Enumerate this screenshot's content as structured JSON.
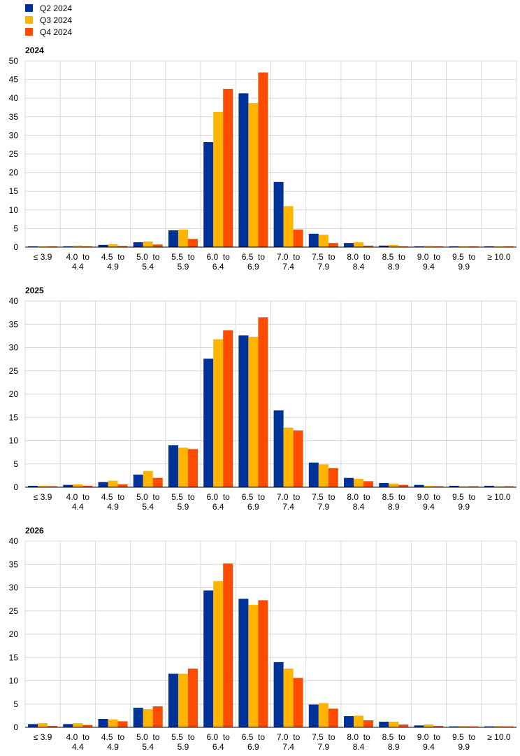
{
  "legend": [
    {
      "name": "Q2 2024",
      "color": "#003299"
    },
    {
      "name": "Q3 2024",
      "color": "#FFB400"
    },
    {
      "name": "Q4 2024",
      "color": "#FF4B00"
    }
  ],
  "chart_data": [
    {
      "type": "bar",
      "title": "2024",
      "ylim": [
        0,
        50
      ],
      "yticks": [
        0,
        5,
        10,
        15,
        20,
        25,
        30,
        35,
        40,
        45,
        50
      ],
      "grid": true,
      "legend_position": "top-left",
      "categories": [
        [
          "≤ 3.9"
        ],
        [
          "4.0  to",
          "4.4"
        ],
        [
          "4.5  to",
          "4.9"
        ],
        [
          "5.0  to",
          "5.4"
        ],
        [
          "5.5  to",
          "5.9"
        ],
        [
          "6.0  to",
          "6.4"
        ],
        [
          "6.5  to",
          "6.9"
        ],
        [
          "7.0  to",
          "7.4"
        ],
        [
          "7.5  to",
          "7.9"
        ],
        [
          "8.0  to",
          "8.4"
        ],
        [
          "8.5  to",
          "8.9"
        ],
        [
          "9.0  to",
          "9.4"
        ],
        [
          "9.5  to",
          "9.9"
        ],
        [
          "≥ 10.0"
        ]
      ],
      "series": [
        {
          "name": "Q2 2024",
          "values": [
            0.2,
            0.2,
            0.6,
            1.3,
            4.5,
            28.2,
            41.3,
            17.5,
            3.6,
            1.1,
            0.4,
            0.2,
            0.2,
            0.2
          ]
        },
        {
          "name": "Q3 2024",
          "values": [
            0.2,
            0.4,
            0.8,
            1.5,
            4.7,
            36.3,
            38.7,
            11.0,
            3.3,
            1.3,
            0.6,
            0.3,
            0.2,
            0.2
          ]
        },
        {
          "name": "Q4 2024",
          "values": [
            0.2,
            0.2,
            0.3,
            0.7,
            2.2,
            42.5,
            46.9,
            4.7,
            1.1,
            0.4,
            0.2,
            0.2,
            0.2,
            0.2
          ]
        }
      ]
    },
    {
      "type": "bar",
      "title": "2025",
      "ylim": [
        0,
        40
      ],
      "yticks": [
        0,
        5,
        10,
        15,
        20,
        25,
        30,
        35,
        40
      ],
      "grid": true,
      "categories": [
        [
          "≤ 3.9"
        ],
        [
          "4.0  to",
          "4.4"
        ],
        [
          "4.5  to",
          "4.9"
        ],
        [
          "5.0  to",
          "5.4"
        ],
        [
          "5.5  to",
          "5.9"
        ],
        [
          "6.0  to",
          "6.4"
        ],
        [
          "6.5  to",
          "6.9"
        ],
        [
          "7.0  to",
          "7.4"
        ],
        [
          "7.5  to",
          "7.9"
        ],
        [
          "8.0  to",
          "8.4"
        ],
        [
          "8.5  to",
          "8.9"
        ],
        [
          "9.0  to",
          "9.4"
        ],
        [
          "9.5  to",
          "9.9"
        ],
        [
          "≥ 10.0"
        ]
      ],
      "series": [
        {
          "name": "Q2 2024",
          "values": [
            0.3,
            0.5,
            1.1,
            2.7,
            9.0,
            27.6,
            32.6,
            16.5,
            5.3,
            2.0,
            0.9,
            0.5,
            0.3,
            0.3
          ]
        },
        {
          "name": "Q3 2024",
          "values": [
            0.3,
            0.6,
            1.4,
            3.5,
            8.5,
            31.8,
            32.3,
            12.8,
            4.9,
            1.8,
            0.8,
            0.3,
            0.2,
            0.2
          ]
        },
        {
          "name": "Q4 2024",
          "values": [
            0.2,
            0.3,
            0.6,
            2.0,
            8.2,
            33.7,
            36.5,
            12.2,
            4.1,
            1.3,
            0.5,
            0.2,
            0.2,
            0.2
          ]
        }
      ]
    },
    {
      "type": "bar",
      "title": "2026",
      "ylim": [
        0,
        40
      ],
      "yticks": [
        0,
        5,
        10,
        15,
        20,
        25,
        30,
        35,
        40
      ],
      "grid": true,
      "categories": [
        [
          "≤ 3.9"
        ],
        [
          "4.0  to",
          "4.4"
        ],
        [
          "4.5  to",
          "4.9"
        ],
        [
          "5.0  to",
          "5.4"
        ],
        [
          "5.5  to",
          "5.9"
        ],
        [
          "6.0  to",
          "6.4"
        ],
        [
          "6.5  to",
          "6.9"
        ],
        [
          "7.0  to",
          "7.4"
        ],
        [
          "7.5  to",
          "7.9"
        ],
        [
          "8.0  to",
          "8.4"
        ],
        [
          "8.5  to",
          "8.9"
        ],
        [
          "9.0  to",
          "9.4"
        ],
        [
          "9.5  to",
          "9.9"
        ],
        [
          "≥ 10.0"
        ]
      ],
      "series": [
        {
          "name": "Q2 2024",
          "values": [
            0.7,
            0.7,
            1.8,
            4.2,
            11.5,
            29.4,
            27.6,
            14.0,
            4.9,
            2.4,
            1.2,
            0.4,
            0.2,
            0.2
          ]
        },
        {
          "name": "Q3 2024",
          "values": [
            0.9,
            0.9,
            1.7,
            3.9,
            11.5,
            31.4,
            26.3,
            12.6,
            5.2,
            2.5,
            1.2,
            0.6,
            0.3,
            0.3
          ]
        },
        {
          "name": "Q4 2024",
          "values": [
            0.3,
            0.5,
            1.3,
            4.5,
            12.6,
            35.2,
            27.3,
            10.6,
            4.0,
            1.5,
            0.6,
            0.3,
            0.2,
            0.2
          ]
        }
      ]
    }
  ]
}
